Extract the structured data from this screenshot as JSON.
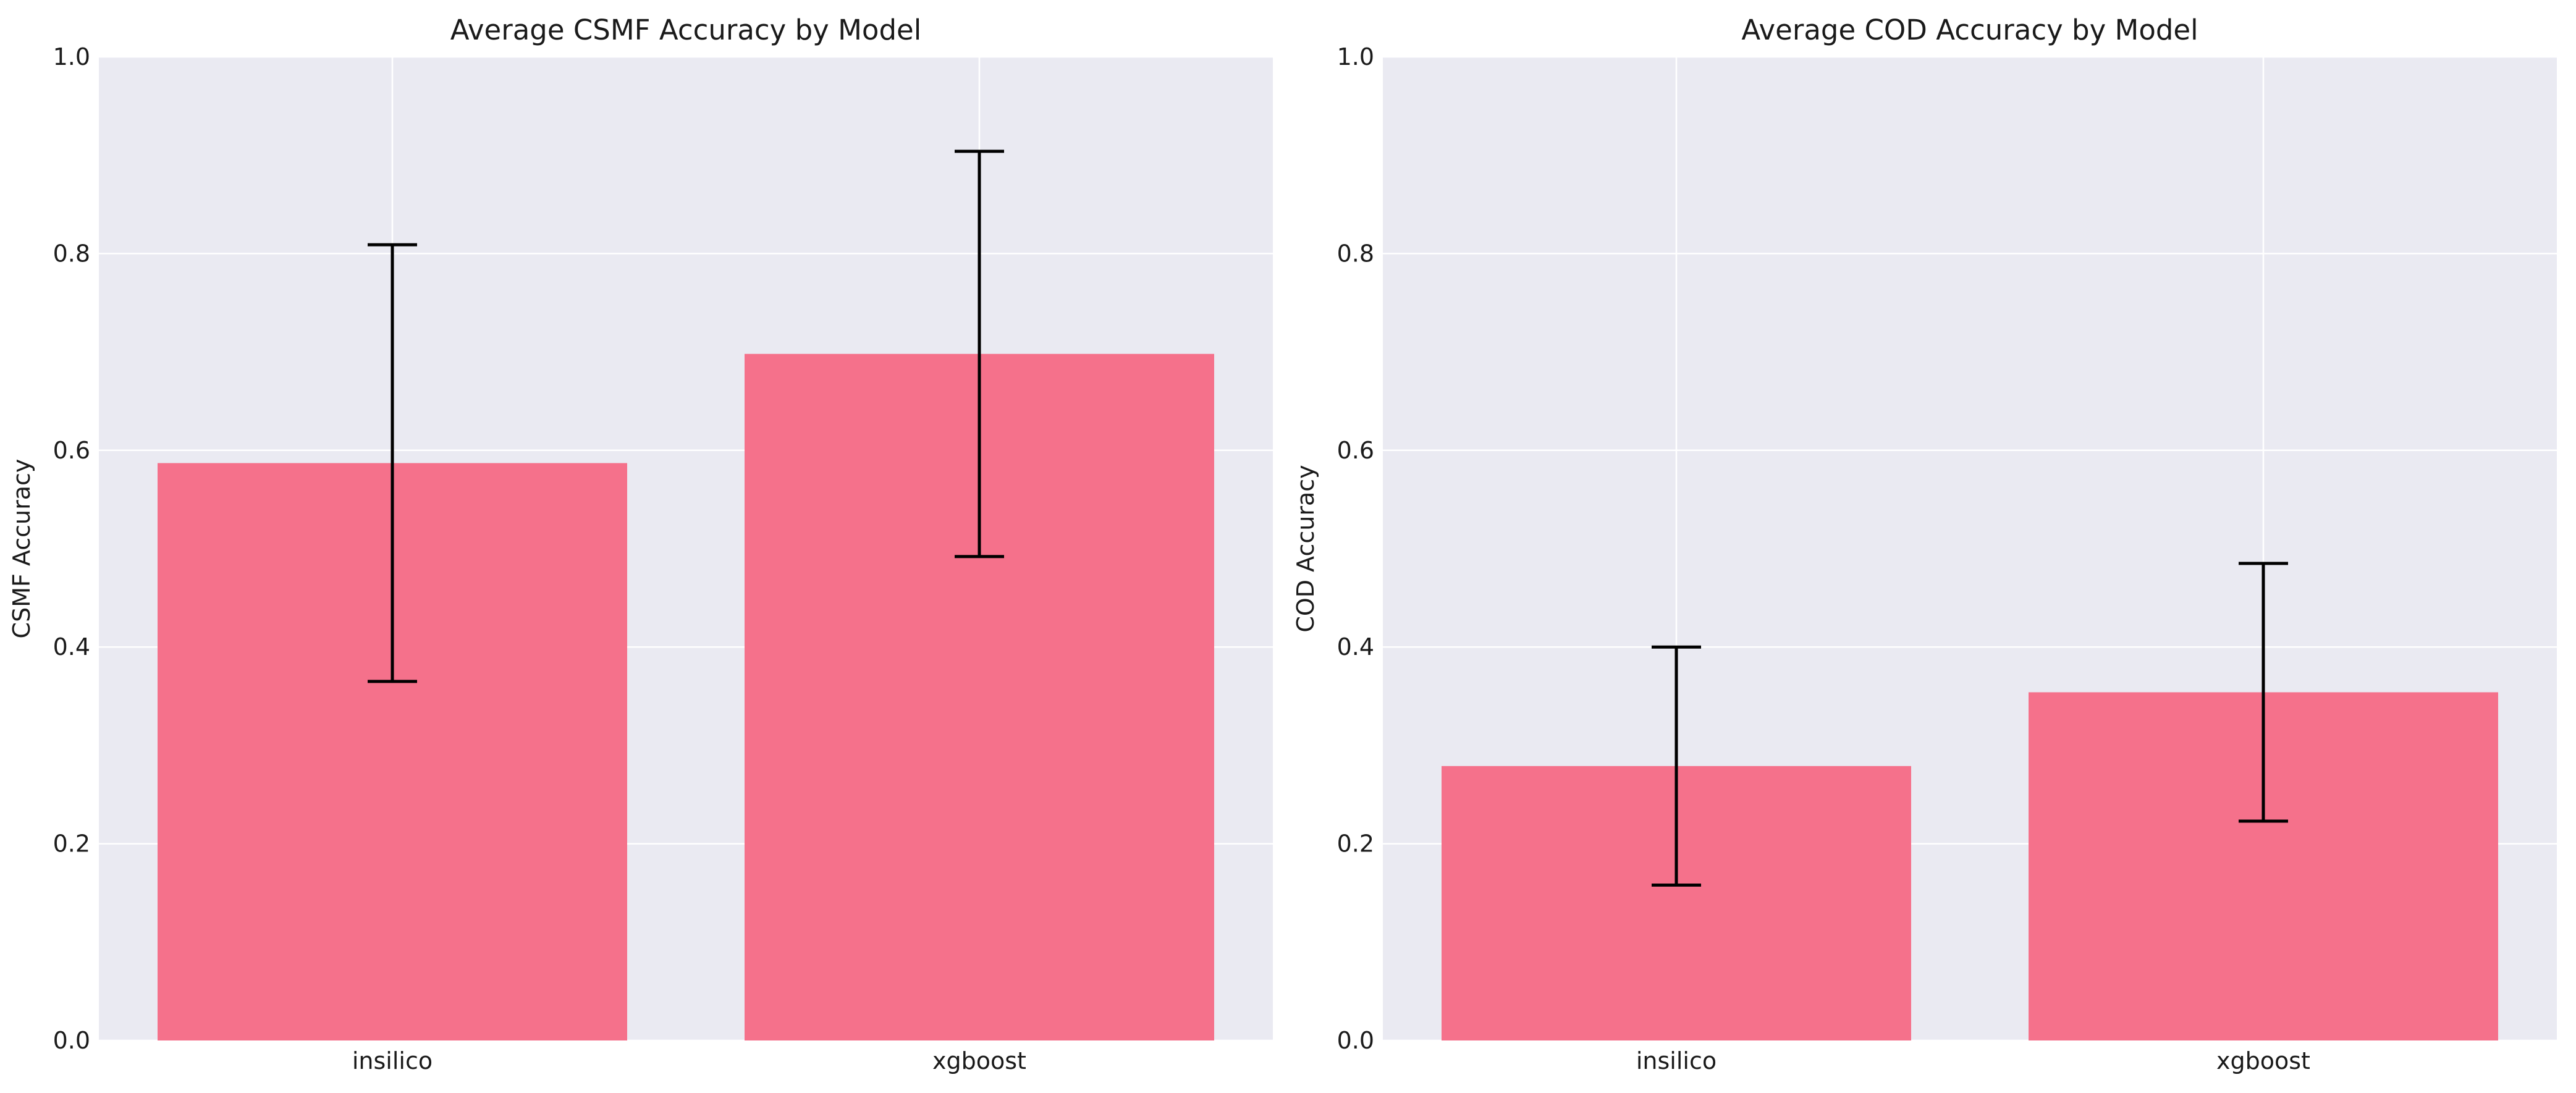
{
  "chart_data": [
    {
      "type": "bar",
      "title": "Average CSMF Accuracy by Model",
      "xlabel": "",
      "ylabel": "CSMF Accuracy",
      "ylim": [
        0,
        1.0
      ],
      "yticks": [
        "0.0",
        "0.2",
        "0.4",
        "0.6",
        "0.8",
        "1.0"
      ],
      "categories": [
        "insilico",
        "xgboost"
      ],
      "values": [
        0.587,
        0.698
      ],
      "error": [
        0.222,
        0.206
      ],
      "bar_color": "#f5718b",
      "background_color": "#eaeaf2",
      "grid": true
    },
    {
      "type": "bar",
      "title": "Average COD Accuracy by Model",
      "xlabel": "",
      "ylabel": "COD Accuracy",
      "ylim": [
        0,
        1.0
      ],
      "yticks": [
        "0.0",
        "0.2",
        "0.4",
        "0.6",
        "0.8",
        "1.0"
      ],
      "categories": [
        "insilico",
        "xgboost"
      ],
      "values": [
        0.279,
        0.354
      ],
      "error": [
        0.121,
        0.131
      ],
      "bar_color": "#f5718b",
      "background_color": "#eaeaf2",
      "grid": true
    }
  ]
}
